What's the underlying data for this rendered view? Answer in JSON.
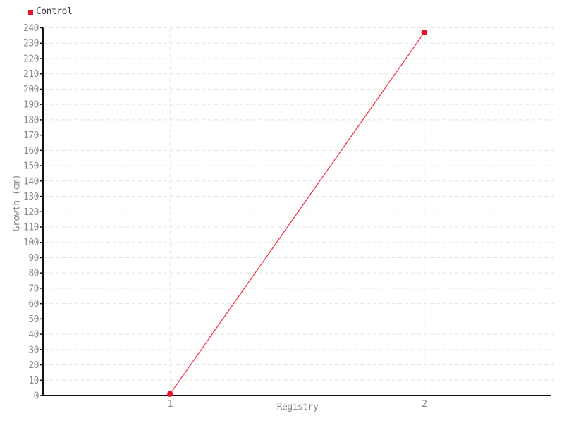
{
  "page": {
    "background": "#ffffff"
  },
  "chart_data": {
    "type": "line",
    "title": "",
    "xlabel": "Registry",
    "ylabel": "Growth (cm)",
    "series": [
      {
        "name": "Control",
        "marker_color": "#e8112d",
        "line_color": "#ee2b43",
        "x": [
          1,
          2
        ],
        "y": [
          1,
          237
        ]
      }
    ],
    "x_ticks": [
      1,
      2
    ],
    "x_tick_labels": [
      "1",
      "2"
    ],
    "y_ticks": [
      0,
      10,
      20,
      30,
      40,
      50,
      60,
      70,
      80,
      90,
      100,
      110,
      120,
      130,
      140,
      150,
      160,
      170,
      180,
      190,
      200,
      210,
      220,
      230,
      240
    ],
    "xlim": [
      0.5,
      2.5
    ],
    "ylim": [
      0,
      240
    ],
    "legend_position": "top-left",
    "grid": {
      "horizontal": "dashed",
      "vertical": "dashed",
      "color": "#e3e3e3"
    },
    "axis_color": "#111111",
    "tick_label_color": "#8a8a8a"
  }
}
